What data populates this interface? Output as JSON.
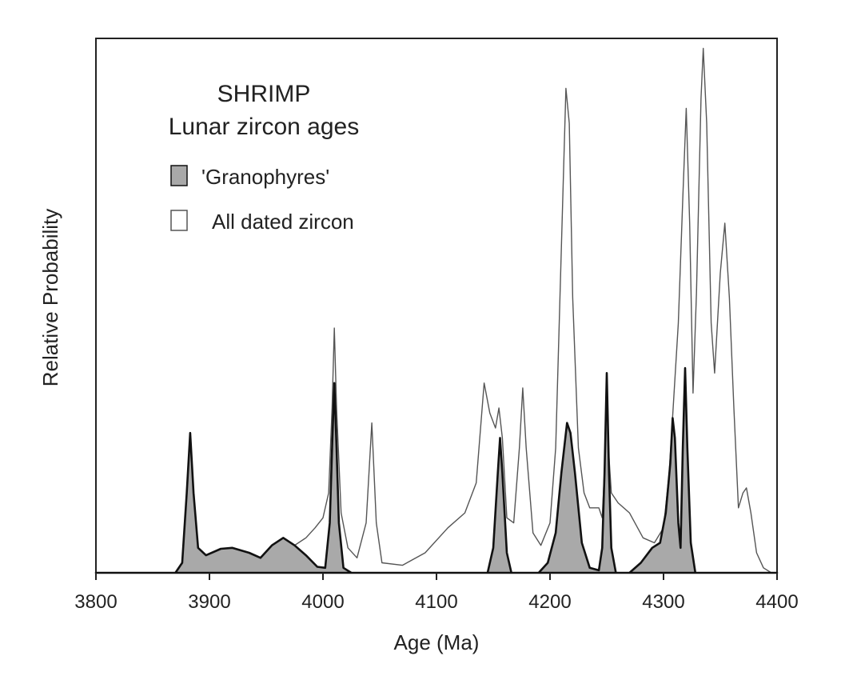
{
  "chart_data": {
    "type": "area",
    "title": "SHRIMP",
    "subtitle": "Lunar zircon ages",
    "xlabel": "Age (Ma)",
    "ylabel": "Relative Probability",
    "xlim": [
      3800,
      4400
    ],
    "ylim": [
      0,
      1.07
    ],
    "x_ticks": [
      "3800",
      "3900",
      "4000",
      "4100",
      "4200",
      "4300",
      "4400"
    ],
    "y_ticks": [],
    "grid": false,
    "legend": "top-left",
    "series": [
      {
        "name": "All dated zircon",
        "style": "outline",
        "color": "#555555",
        "fill": "none",
        "points": [
          [
            3800,
            0
          ],
          [
            3870,
            0
          ],
          [
            3876,
            0.02
          ],
          [
            3880,
            0.16
          ],
          [
            3883,
            0.28
          ],
          [
            3886,
            0.16
          ],
          [
            3890,
            0.05
          ],
          [
            3897,
            0.035
          ],
          [
            3910,
            0.048
          ],
          [
            3920,
            0.05
          ],
          [
            3935,
            0.04
          ],
          [
            3945,
            0.03
          ],
          [
            3955,
            0.055
          ],
          [
            3965,
            0.07
          ],
          [
            3975,
            0.055
          ],
          [
            3985,
            0.07
          ],
          [
            3993,
            0.09
          ],
          [
            4000,
            0.11
          ],
          [
            4005,
            0.16
          ],
          [
            4008,
            0.33
          ],
          [
            4010,
            0.49
          ],
          [
            4012,
            0.33
          ],
          [
            4016,
            0.12
          ],
          [
            4022,
            0.05
          ],
          [
            4030,
            0.03
          ],
          [
            4038,
            0.1
          ],
          [
            4043,
            0.3
          ],
          [
            4047,
            0.1
          ],
          [
            4052,
            0.02
          ],
          [
            4070,
            0.015
          ],
          [
            4090,
            0.04
          ],
          [
            4110,
            0.09
          ],
          [
            4125,
            0.12
          ],
          [
            4135,
            0.18
          ],
          [
            4142,
            0.38
          ],
          [
            4147,
            0.32
          ],
          [
            4152,
            0.29
          ],
          [
            4155,
            0.33
          ],
          [
            4158,
            0.27
          ],
          [
            4162,
            0.11
          ],
          [
            4168,
            0.1
          ],
          [
            4173,
            0.25
          ],
          [
            4176,
            0.37
          ],
          [
            4179,
            0.25
          ],
          [
            4185,
            0.08
          ],
          [
            4192,
            0.055
          ],
          [
            4200,
            0.1
          ],
          [
            4205,
            0.25
          ],
          [
            4210,
            0.65
          ],
          [
            4214,
            0.97
          ],
          [
            4217,
            0.9
          ],
          [
            4220,
            0.55
          ],
          [
            4225,
            0.25
          ],
          [
            4230,
            0.16
          ],
          [
            4235,
            0.13
          ],
          [
            4240,
            0.13
          ],
          [
            4243,
            0.13
          ],
          [
            4246,
            0.11
          ],
          [
            4250,
            0.3
          ],
          [
            4254,
            0.16
          ],
          [
            4260,
            0.14
          ],
          [
            4270,
            0.12
          ],
          [
            4282,
            0.07
          ],
          [
            4292,
            0.06
          ],
          [
            4300,
            0.09
          ],
          [
            4305,
            0.2
          ],
          [
            4309,
            0.35
          ],
          [
            4313,
            0.5
          ],
          [
            4317,
            0.75
          ],
          [
            4320,
            0.93
          ],
          [
            4323,
            0.7
          ],
          [
            4326,
            0.36
          ],
          [
            4329,
            0.56
          ],
          [
            4333,
            0.95
          ],
          [
            4335,
            1.05
          ],
          [
            4338,
            0.9
          ],
          [
            4342,
            0.5
          ],
          [
            4345,
            0.4
          ],
          [
            4350,
            0.6
          ],
          [
            4354,
            0.7
          ],
          [
            4358,
            0.55
          ],
          [
            4362,
            0.33
          ],
          [
            4366,
            0.13
          ],
          [
            4370,
            0.16
          ],
          [
            4373,
            0.17
          ],
          [
            4377,
            0.12
          ],
          [
            4382,
            0.04
          ],
          [
            4388,
            0.01
          ],
          [
            4395,
            0
          ]
        ]
      },
      {
        "name": "'Granophyres'",
        "style": "filled",
        "color": "#111111",
        "fill": "#a9a9a9",
        "points": [
          [
            3800,
            0
          ],
          [
            3870,
            0
          ],
          [
            3876,
            0.02
          ],
          [
            3880,
            0.16
          ],
          [
            3883,
            0.28
          ],
          [
            3886,
            0.16
          ],
          [
            3890,
            0.05
          ],
          [
            3897,
            0.035
          ],
          [
            3910,
            0.048
          ],
          [
            3920,
            0.05
          ],
          [
            3935,
            0.04
          ],
          [
            3945,
            0.03
          ],
          [
            3955,
            0.055
          ],
          [
            3965,
            0.07
          ],
          [
            3975,
            0.055
          ],
          [
            3985,
            0.035
          ],
          [
            3995,
            0.012
          ],
          [
            4002,
            0.01
          ],
          [
            4006,
            0.1
          ],
          [
            4008,
            0.25
          ],
          [
            4010,
            0.38
          ],
          [
            4012,
            0.25
          ],
          [
            4014,
            0.1
          ],
          [
            4018,
            0.01
          ],
          [
            4025,
            0
          ],
          [
            4145,
            0
          ],
          [
            4150,
            0.05
          ],
          [
            4154,
            0.2
          ],
          [
            4156,
            0.27
          ],
          [
            4158,
            0.2
          ],
          [
            4162,
            0.04
          ],
          [
            4166,
            0
          ],
          [
            4190,
            0
          ],
          [
            4198,
            0.02
          ],
          [
            4205,
            0.08
          ],
          [
            4210,
            0.2
          ],
          [
            4215,
            0.3
          ],
          [
            4218,
            0.28
          ],
          [
            4222,
            0.2
          ],
          [
            4228,
            0.06
          ],
          [
            4235,
            0.01
          ],
          [
            4243,
            0.005
          ],
          [
            4246,
            0.05
          ],
          [
            4248,
            0.2
          ],
          [
            4250,
            0.4
          ],
          [
            4252,
            0.2
          ],
          [
            4254,
            0.05
          ],
          [
            4258,
            0
          ],
          [
            4270,
            0
          ],
          [
            4280,
            0.02
          ],
          [
            4290,
            0.05
          ],
          [
            4297,
            0.06
          ],
          [
            4302,
            0.12
          ],
          [
            4306,
            0.22
          ],
          [
            4308,
            0.31
          ],
          [
            4310,
            0.27
          ],
          [
            4313,
            0.1
          ],
          [
            4315,
            0.05
          ],
          [
            4317,
            0.25
          ],
          [
            4319,
            0.41
          ],
          [
            4321,
            0.25
          ],
          [
            4324,
            0.06
          ],
          [
            4328,
            0
          ],
          [
            4400,
            0
          ]
        ]
      }
    ]
  }
}
